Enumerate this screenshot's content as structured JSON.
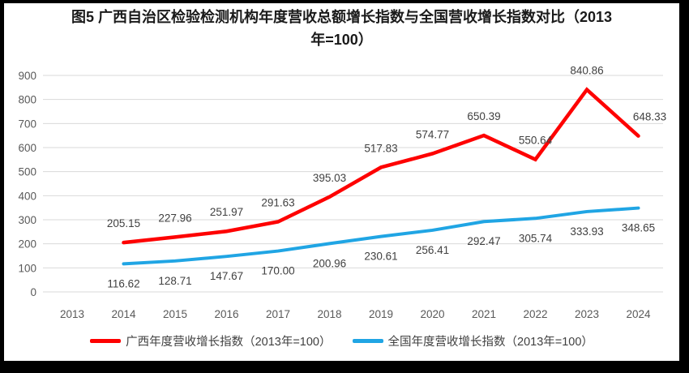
{
  "title": "图5  广西自治区检验检测机构年度营收总额增长指数与全国营收增长指数对比（2013年=100）",
  "chart_data": {
    "type": "line",
    "x": [
      "2013",
      "2014",
      "2015",
      "2016",
      "2017",
      "2018",
      "2019",
      "2020",
      "2021",
      "2022",
      "2023",
      "2024"
    ],
    "series": [
      {
        "name": "广西年度营收增长指数（2013年=100）",
        "color": "#FE0000",
        "label_position": "above",
        "values": [
          null,
          205.15,
          227.96,
          251.97,
          291.63,
          395.03,
          517.83,
          574.77,
          650.39,
          550.64,
          840.86,
          648.33
        ]
      },
      {
        "name": "全国年度营收增长指数（2013年=100）",
        "color": "#20A5E4",
        "label_position": "below",
        "values": [
          null,
          116.62,
          128.71,
          147.67,
          170.0,
          200.96,
          230.61,
          256.41,
          292.47,
          305.74,
          333.93,
          348.65
        ]
      }
    ],
    "ylim": [
      0,
      900
    ],
    "yticks": [
      0,
      100,
      200,
      300,
      400,
      500,
      600,
      700,
      800,
      900
    ],
    "grid": true,
    "legend_position": "bottom",
    "data_label_decimals": 2,
    "colors": {
      "grid": "#D9D9D9",
      "axis_text": "#595959",
      "data_label_text": "#404040",
      "title_text": "#1a1a1a",
      "frame_border": "#000000"
    }
  }
}
